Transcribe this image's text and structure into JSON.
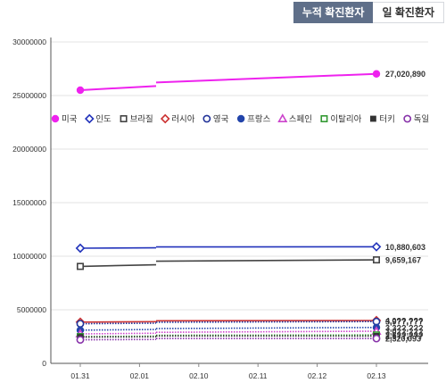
{
  "tabs": {
    "cumulative_label": "누적 확진환자",
    "daily_label": "일 확진환자"
  },
  "chart_data": {
    "type": "line",
    "categories": [
      "01.31",
      "02.01",
      "02.10",
      "02.11",
      "02.12",
      "02.13"
    ],
    "ylim": [
      0,
      30000000
    ],
    "yticks": [
      "0",
      "5000000",
      "10000000",
      "15000000",
      "20000000",
      "25000000",
      "30000000"
    ],
    "grid": true,
    "legend_position": "top",
    "series": [
      {
        "name": "미국",
        "color": "#ee22ee",
        "marker": "circle-filled",
        "start": 25500000,
        "end": 27020890,
        "end_label": "27,020,890"
      },
      {
        "name": "인도",
        "color": "#2233bb",
        "marker": "diamond-open",
        "start": 10750000,
        "end": 10880603,
        "end_label": "10,880,603"
      },
      {
        "name": "브라질",
        "color": "#444444",
        "marker": "square-open",
        "start": 9050000,
        "end": 9659167,
        "end_label": "9,659,167"
      },
      {
        "name": "러시아",
        "color": "#cc3333",
        "marker": "diamond-open",
        "start": 3850000,
        "end": 4000000,
        "end_label": "4,0??,???"
      },
      {
        "name": "영국",
        "color": "#223399",
        "marker": "circle-open",
        "start": 3700000,
        "end": 3900000,
        "end_label": "3,9??,???"
      },
      {
        "name": "프랑스",
        "color": "#2244aa",
        "marker": "circle-filled",
        "start": 3100000,
        "end": 3350000,
        "end_label": "3,3??,???"
      },
      {
        "name": "스페인",
        "color": "#cc44cc",
        "marker": "triangle-open",
        "start": 2750000,
        "end": 3000000,
        "end_label": "3,0??,???"
      },
      {
        "name": "이탈리아",
        "color": "#339933",
        "marker": "square-open",
        "start": 2500000,
        "end": 2650000,
        "end_label": "2,6??,???"
      },
      {
        "name": "터키",
        "color": "#333333",
        "marker": "square-filled",
        "start": 2450000,
        "end": 2550000,
        "end_label": "2,5??,???"
      },
      {
        "name": "독일",
        "color": "#8833aa",
        "marker": "circle-open",
        "start": 2200000,
        "end": 2320093,
        "end_label": "2,320,093"
      }
    ]
  }
}
